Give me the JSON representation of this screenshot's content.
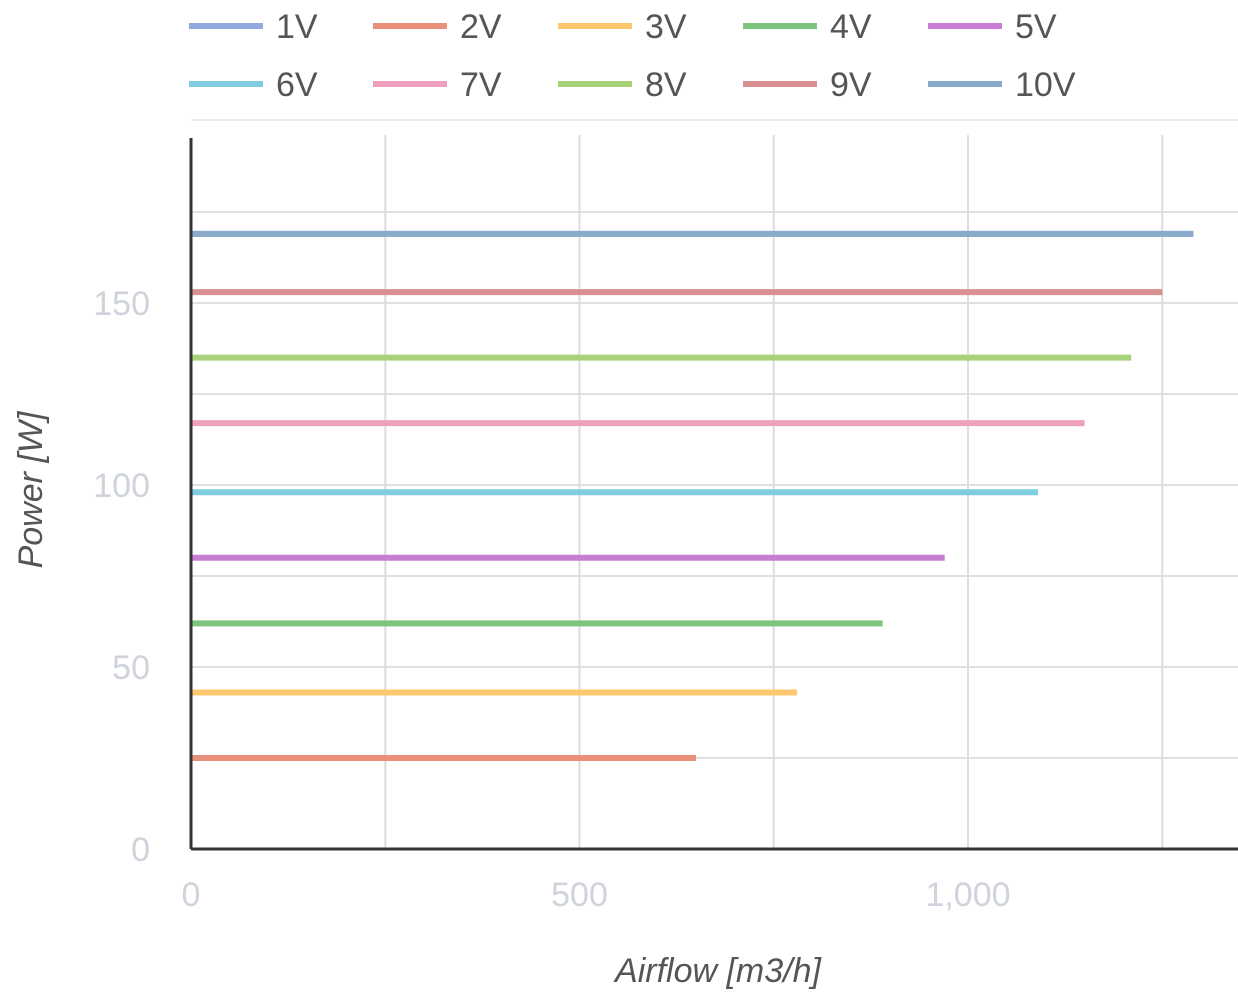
{
  "chart_data": {
    "type": "line",
    "xlabel": "Airflow [m3/h]",
    "ylabel": "Power [W]",
    "xlim": [
      0,
      1350
    ],
    "ylim": [
      0,
      195
    ],
    "x_ticks": [
      0,
      500,
      1000
    ],
    "x_tick_labels": [
      "0",
      "500",
      "1,000"
    ],
    "y_ticks": [
      0,
      50,
      100,
      150
    ],
    "y_tick_labels": [
      "0",
      "50",
      "100",
      "150"
    ],
    "grid": true,
    "legend_position": "top",
    "series": [
      {
        "name": "1V",
        "color": "#8faadc",
        "x": [
          0,
          1290
        ],
        "y": [
          169,
          169
        ]
      },
      {
        "name": "2V",
        "color": "#e8907a",
        "x": [
          0,
          650
        ],
        "y": [
          25,
          25
        ]
      },
      {
        "name": "3V",
        "color": "#ffc870",
        "x": [
          0,
          780
        ],
        "y": [
          43,
          43
        ]
      },
      {
        "name": "4V",
        "color": "#7ec47e",
        "x": [
          0,
          890
        ],
        "y": [
          62,
          62
        ]
      },
      {
        "name": "5V",
        "color": "#c77dd2",
        "x": [
          0,
          970
        ],
        "y": [
          80,
          80
        ]
      },
      {
        "name": "6V",
        "color": "#7ecde0",
        "x": [
          0,
          1090
        ],
        "y": [
          98,
          98
        ]
      },
      {
        "name": "7V",
        "color": "#f0a0bf",
        "x": [
          0,
          1150
        ],
        "y": [
          117,
          117
        ]
      },
      {
        "name": "8V",
        "color": "#a8d27a",
        "x": [
          0,
          1210
        ],
        "y": [
          135,
          135
        ]
      },
      {
        "name": "9V",
        "color": "#d99090",
        "x": [
          0,
          1250
        ],
        "y": [
          153,
          153
        ]
      },
      {
        "name": "10V",
        "color": "#8aaacb",
        "x": [
          0,
          1290
        ],
        "y": [
          169,
          169
        ]
      }
    ]
  }
}
